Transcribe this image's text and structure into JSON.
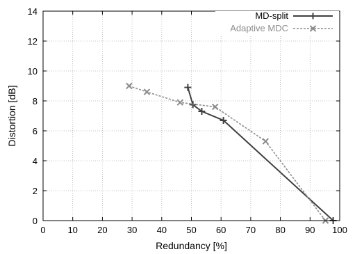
{
  "chart_data": {
    "type": "line",
    "title": "",
    "xlabel": "Redundancy [%]",
    "ylabel": "Distortion [dB]",
    "xlim": [
      0,
      100
    ],
    "ylim": [
      0,
      14
    ],
    "xticks": [
      0,
      10,
      20,
      30,
      40,
      50,
      60,
      70,
      80,
      90,
      100
    ],
    "yticks": [
      0,
      2,
      4,
      6,
      8,
      10,
      12,
      14
    ],
    "grid": true,
    "legend_position": "top-right",
    "series": [
      {
        "name": "MD-split",
        "marker": "plus",
        "line_style": "solid",
        "color": "#404040",
        "points": [
          [
            48.8,
            8.9
          ],
          [
            50.5,
            7.75
          ],
          [
            53.5,
            7.3
          ],
          [
            60.8,
            6.7
          ],
          [
            97.8,
            0.0
          ]
        ]
      },
      {
        "name": "Adaptive MDC",
        "marker": "cross",
        "line_style": "dashed",
        "color": "#8c8c8c",
        "points": [
          [
            29.0,
            9.0
          ],
          [
            35.0,
            8.6
          ],
          [
            46.2,
            7.9
          ],
          [
            58.0,
            7.6
          ],
          [
            75.0,
            5.3
          ],
          [
            95.2,
            0.0
          ]
        ]
      }
    ]
  }
}
